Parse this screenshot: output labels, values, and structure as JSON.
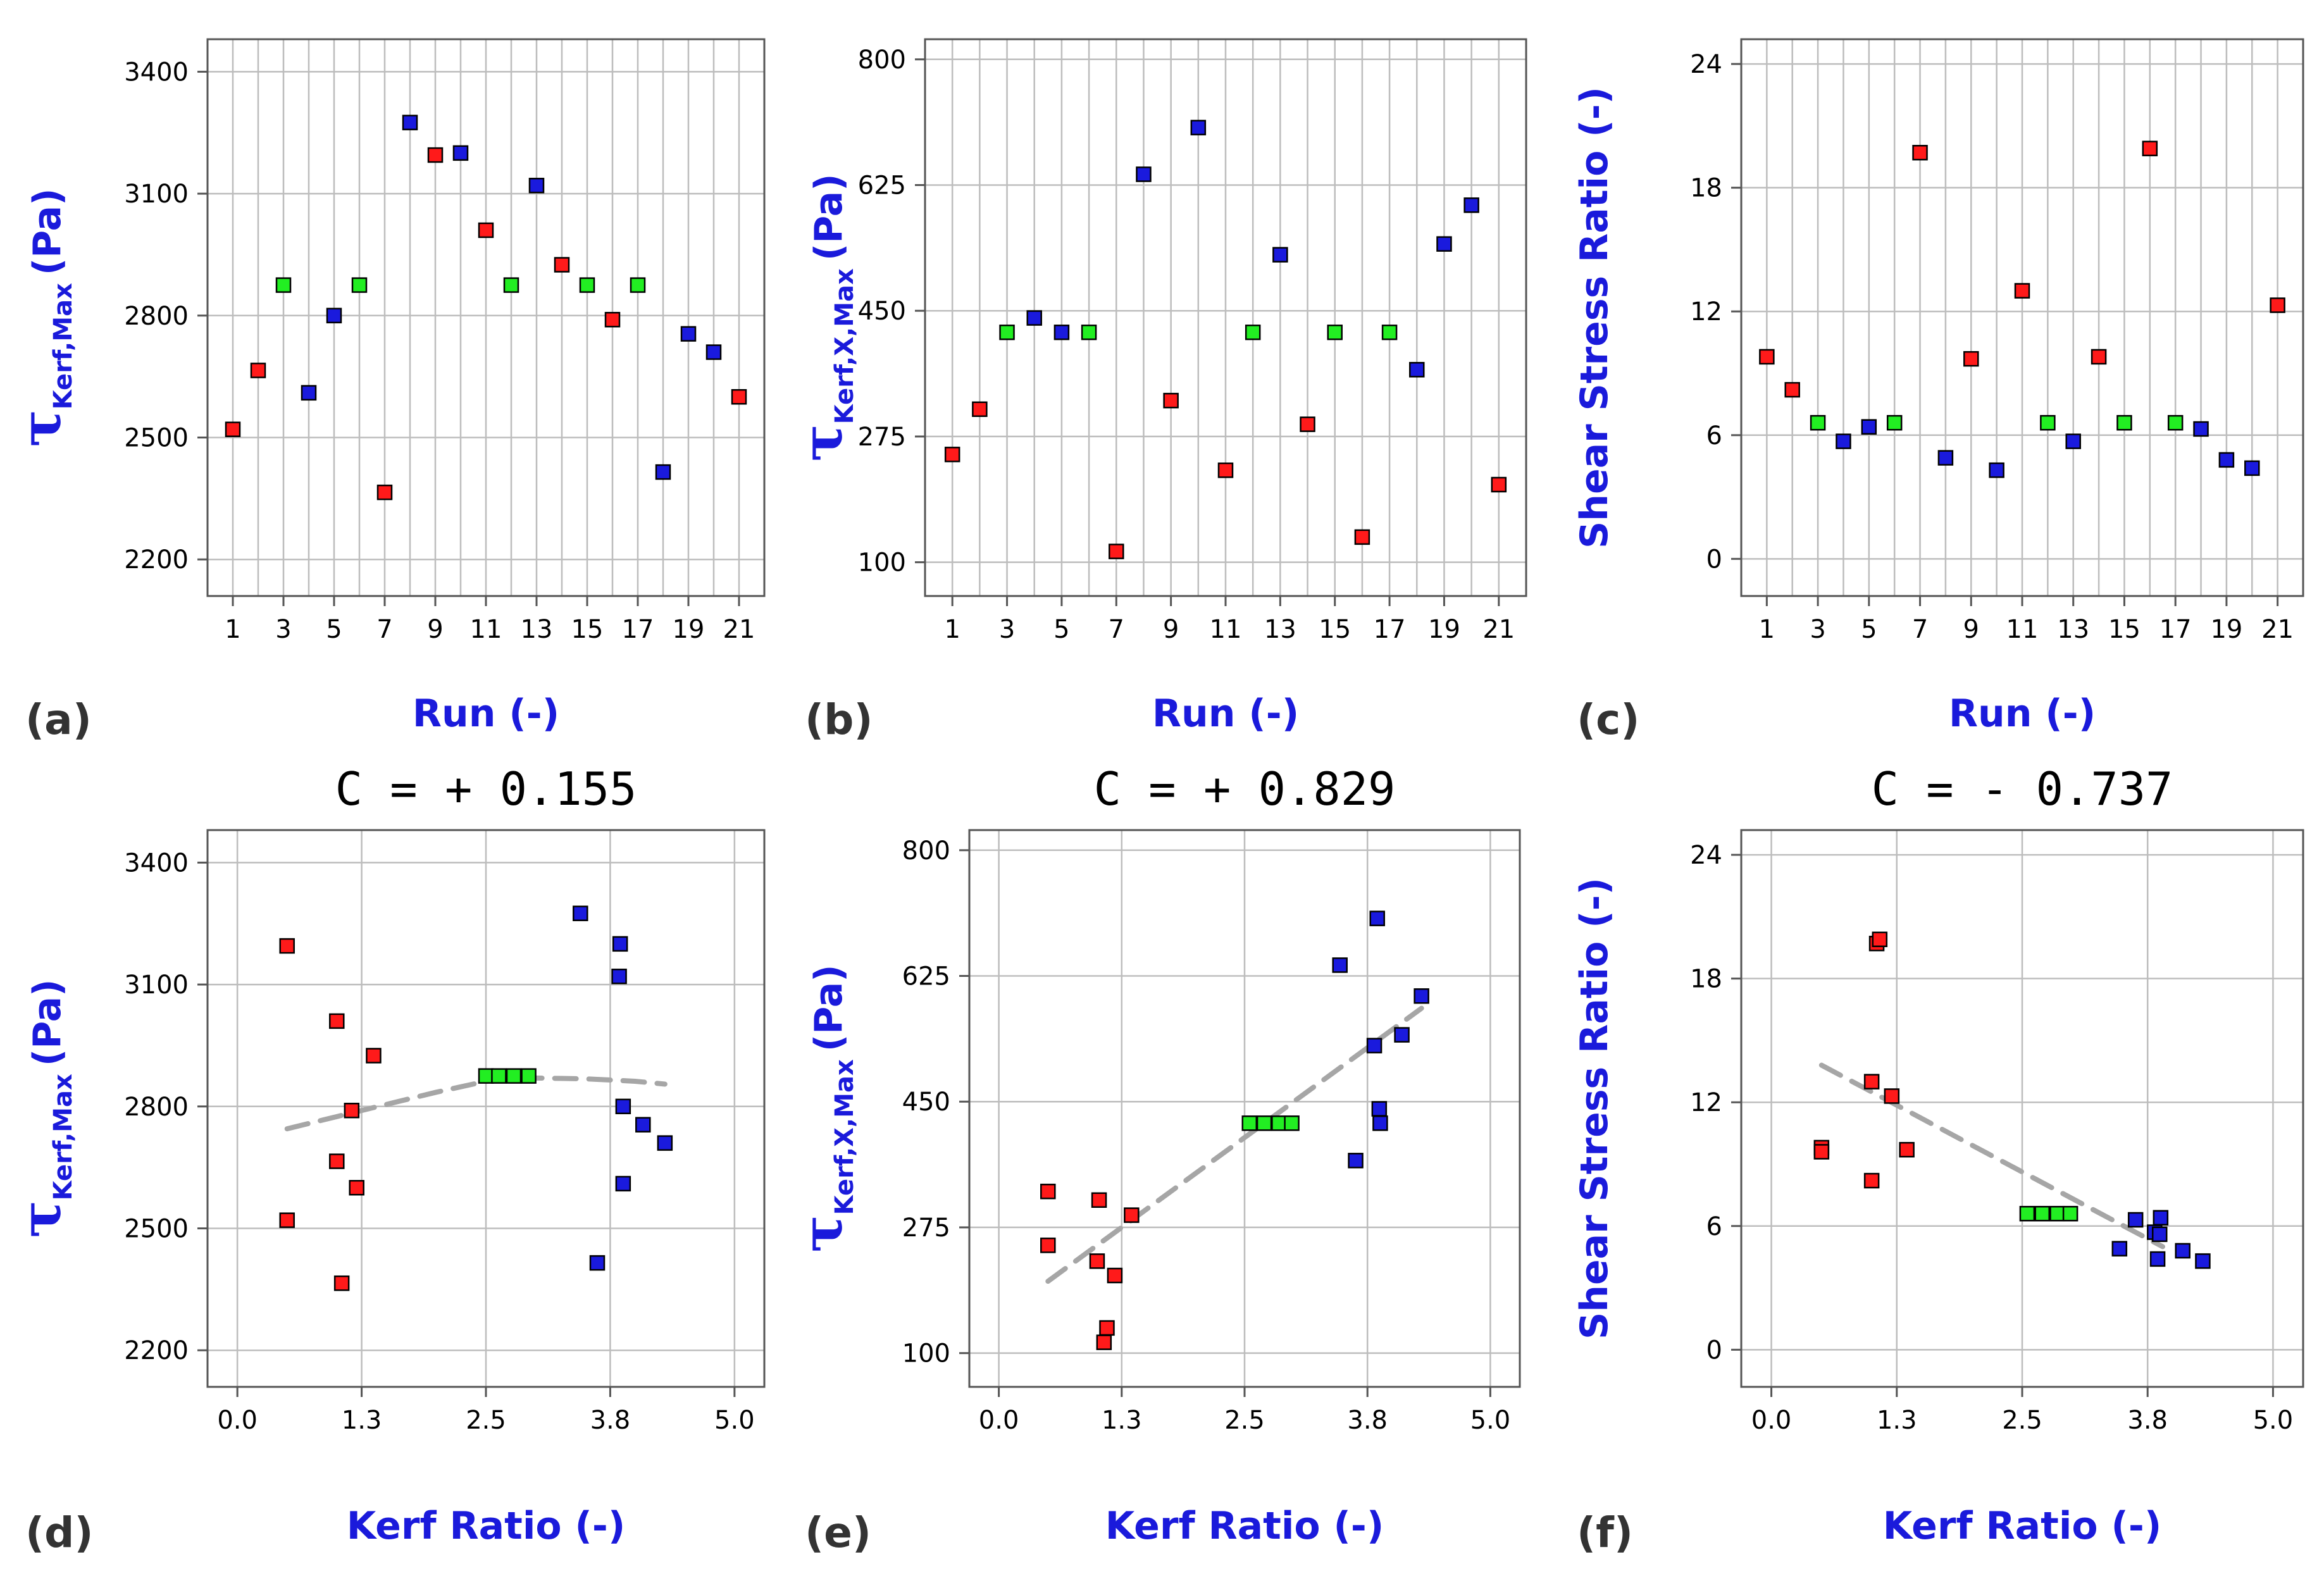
{
  "colors": {
    "red": "#ff1a1a",
    "green": "#22ee22",
    "blue": "#1a1add",
    "fit": "#a6a6a6",
    "grid": "#bdbdbd",
    "axis_label": "#1a1adb"
  },
  "chart_data": [
    {
      "type": "scatter",
      "panel": "(a)",
      "xlabel": "Run (-)",
      "ylabel": "τKerf,Max (Pa)",
      "ylabel_parts": {
        "symbol": "τ",
        "subscript": "Kerf,Max",
        "unit": "(Pa)"
      },
      "xlim": [
        0,
        22
      ],
      "ylim": [
        2110,
        3480
      ],
      "x_ticks": [
        1,
        3,
        5,
        7,
        9,
        11,
        13,
        15,
        17,
        19,
        21
      ],
      "x_tick_labels": [
        "1",
        "3",
        "5",
        "7",
        "9",
        "11",
        "13",
        "15",
        "17",
        "19",
        "21"
      ],
      "y_ticks": [
        2200,
        2500,
        2800,
        3100,
        3400
      ],
      "y_tick_labels": [
        "2200",
        "2500",
        "2800",
        "3100",
        "3400"
      ],
      "grid": true,
      "x_gridlines": [
        1,
        2,
        3,
        4,
        5,
        6,
        7,
        8,
        9,
        10,
        11,
        12,
        13,
        14,
        15,
        16,
        17,
        18,
        19,
        20,
        21
      ],
      "points": [
        {
          "x": 1,
          "y": 2520,
          "color": "red"
        },
        {
          "x": 2,
          "y": 2665,
          "color": "red"
        },
        {
          "x": 3,
          "y": 2875,
          "color": "green"
        },
        {
          "x": 4,
          "y": 2610,
          "color": "blue"
        },
        {
          "x": 5,
          "y": 2800,
          "color": "blue"
        },
        {
          "x": 6,
          "y": 2875,
          "color": "green"
        },
        {
          "x": 7,
          "y": 2365,
          "color": "red"
        },
        {
          "x": 8,
          "y": 3275,
          "color": "blue"
        },
        {
          "x": 9,
          "y": 3195,
          "color": "red"
        },
        {
          "x": 10,
          "y": 3200,
          "color": "blue"
        },
        {
          "x": 11,
          "y": 3010,
          "color": "red"
        },
        {
          "x": 12,
          "y": 2875,
          "color": "green"
        },
        {
          "x": 13,
          "y": 3120,
          "color": "blue"
        },
        {
          "x": 14,
          "y": 2925,
          "color": "red"
        },
        {
          "x": 15,
          "y": 2875,
          "color": "green"
        },
        {
          "x": 16,
          "y": 2790,
          "color": "red"
        },
        {
          "x": 17,
          "y": 2875,
          "color": "green"
        },
        {
          "x": 18,
          "y": 2415,
          "color": "blue"
        },
        {
          "x": 19,
          "y": 2755,
          "color": "blue"
        },
        {
          "x": 20,
          "y": 2710,
          "color": "blue"
        },
        {
          "x": 21,
          "y": 2600,
          "color": "red"
        }
      ]
    },
    {
      "type": "scatter",
      "panel": "(b)",
      "xlabel": "Run (-)",
      "ylabel": "τKerf,X,Max (Pa)",
      "ylabel_parts": {
        "symbol": "τ",
        "subscript": "Kerf,X,Max",
        "unit": "(Pa)"
      },
      "xlim": [
        0,
        22
      ],
      "ylim": [
        53,
        828
      ],
      "x_ticks": [
        1,
        3,
        5,
        7,
        9,
        11,
        13,
        15,
        17,
        19,
        21
      ],
      "x_tick_labels": [
        "1",
        "3",
        "5",
        "7",
        "9",
        "11",
        "13",
        "15",
        "17",
        "19",
        "21"
      ],
      "y_ticks": [
        100,
        275,
        450,
        625,
        800
      ],
      "y_tick_labels": [
        "100",
        "275",
        "450",
        "625",
        "800"
      ],
      "grid": true,
      "x_gridlines": [
        1,
        2,
        3,
        4,
        5,
        6,
        7,
        8,
        9,
        10,
        11,
        12,
        13,
        14,
        15,
        16,
        17,
        18,
        19,
        20,
        21
      ],
      "points": [
        {
          "x": 1,
          "y": 250,
          "color": "red"
        },
        {
          "x": 2,
          "y": 313,
          "color": "red"
        },
        {
          "x": 3,
          "y": 420,
          "color": "green"
        },
        {
          "x": 4,
          "y": 440,
          "color": "blue"
        },
        {
          "x": 5,
          "y": 420,
          "color": "blue"
        },
        {
          "x": 6,
          "y": 420,
          "color": "green"
        },
        {
          "x": 7,
          "y": 115,
          "color": "red"
        },
        {
          "x": 8,
          "y": 640,
          "color": "blue"
        },
        {
          "x": 9,
          "y": 325,
          "color": "red"
        },
        {
          "x": 10,
          "y": 705,
          "color": "blue"
        },
        {
          "x": 11,
          "y": 228,
          "color": "red"
        },
        {
          "x": 12,
          "y": 420,
          "color": "green"
        },
        {
          "x": 13,
          "y": 528,
          "color": "blue"
        },
        {
          "x": 14,
          "y": 292,
          "color": "red"
        },
        {
          "x": 15,
          "y": 420,
          "color": "green"
        },
        {
          "x": 16,
          "y": 135,
          "color": "red"
        },
        {
          "x": 17,
          "y": 420,
          "color": "green"
        },
        {
          "x": 18,
          "y": 368,
          "color": "blue"
        },
        {
          "x": 19,
          "y": 543,
          "color": "blue"
        },
        {
          "x": 20,
          "y": 597,
          "color": "blue"
        },
        {
          "x": 21,
          "y": 208,
          "color": "red"
        }
      ]
    },
    {
      "type": "scatter",
      "panel": "(c)",
      "xlabel": "Run (-)",
      "ylabel": "Shear Stress Ratio (-)",
      "xlim": [
        0,
        22
      ],
      "ylim": [
        -1.8,
        25.2
      ],
      "x_ticks": [
        1,
        3,
        5,
        7,
        9,
        11,
        13,
        15,
        17,
        19,
        21
      ],
      "x_tick_labels": [
        "1",
        "3",
        "5",
        "7",
        "9",
        "11",
        "13",
        "15",
        "17",
        "19",
        "21"
      ],
      "y_ticks": [
        0,
        6,
        12,
        18,
        24
      ],
      "y_tick_labels": [
        "0",
        "6",
        "12",
        "18",
        "24"
      ],
      "grid": true,
      "x_gridlines": [
        1,
        2,
        3,
        4,
        5,
        6,
        7,
        8,
        9,
        10,
        11,
        12,
        13,
        14,
        15,
        16,
        17,
        18,
        19,
        20,
        21
      ],
      "points": [
        {
          "x": 1,
          "y": 9.8,
          "color": "red"
        },
        {
          "x": 2,
          "y": 8.2,
          "color": "red"
        },
        {
          "x": 3,
          "y": 6.6,
          "color": "green"
        },
        {
          "x": 4,
          "y": 5.7,
          "color": "blue"
        },
        {
          "x": 5,
          "y": 6.4,
          "color": "blue"
        },
        {
          "x": 6,
          "y": 6.6,
          "color": "green"
        },
        {
          "x": 7,
          "y": 19.7,
          "color": "red"
        },
        {
          "x": 8,
          "y": 4.9,
          "color": "blue"
        },
        {
          "x": 9,
          "y": 9.7,
          "color": "red"
        },
        {
          "x": 10,
          "y": 4.3,
          "color": "blue"
        },
        {
          "x": 11,
          "y": 13.0,
          "color": "red"
        },
        {
          "x": 12,
          "y": 6.6,
          "color": "green"
        },
        {
          "x": 13,
          "y": 5.7,
          "color": "blue"
        },
        {
          "x": 14,
          "y": 9.8,
          "color": "red"
        },
        {
          "x": 15,
          "y": 6.6,
          "color": "green"
        },
        {
          "x": 16,
          "y": 19.9,
          "color": "red"
        },
        {
          "x": 17,
          "y": 6.6,
          "color": "green"
        },
        {
          "x": 18,
          "y": 6.3,
          "color": "blue"
        },
        {
          "x": 19,
          "y": 4.8,
          "color": "blue"
        },
        {
          "x": 20,
          "y": 4.4,
          "color": "blue"
        },
        {
          "x": 21,
          "y": 12.3,
          "color": "red"
        }
      ]
    },
    {
      "type": "scatter",
      "panel": "(d)",
      "annotation": "C = + 0.155",
      "xlabel": "Kerf Ratio (-)",
      "ylabel": "τKerf,Max (Pa)",
      "ylabel_parts": {
        "symbol": "τ",
        "subscript": "Kerf,Max",
        "unit": "(Pa)"
      },
      "xlim": [
        -0.3,
        5.3
      ],
      "ylim": [
        2110,
        3480
      ],
      "x_ticks": [
        0.0,
        1.25,
        2.5,
        3.75,
        5.0
      ],
      "x_tick_labels": [
        "0.0",
        "1.3",
        "2.5",
        "3.8",
        "5.0"
      ],
      "y_ticks": [
        2200,
        2500,
        2800,
        3100,
        3400
      ],
      "y_tick_labels": [
        "2200",
        "2500",
        "2800",
        "3100",
        "3400"
      ],
      "grid": true,
      "points": [
        {
          "x": 0.5,
          "y": 3195,
          "color": "red"
        },
        {
          "x": 0.5,
          "y": 2520,
          "color": "red"
        },
        {
          "x": 1.0,
          "y": 3010,
          "color": "red"
        },
        {
          "x": 1.0,
          "y": 2665,
          "color": "red"
        },
        {
          "x": 1.05,
          "y": 2365,
          "color": "red"
        },
        {
          "x": 1.15,
          "y": 2790,
          "color": "red"
        },
        {
          "x": 1.2,
          "y": 2600,
          "color": "red"
        },
        {
          "x": 1.37,
          "y": 2925,
          "color": "red"
        },
        {
          "x": 2.5,
          "y": 2875,
          "color": "green"
        },
        {
          "x": 2.63,
          "y": 2875,
          "color": "green"
        },
        {
          "x": 2.78,
          "y": 2875,
          "color": "green"
        },
        {
          "x": 2.93,
          "y": 2875,
          "color": "green"
        },
        {
          "x": 3.45,
          "y": 3275,
          "color": "blue"
        },
        {
          "x": 3.62,
          "y": 2415,
          "color": "blue"
        },
        {
          "x": 3.85,
          "y": 3200,
          "color": "blue"
        },
        {
          "x": 3.84,
          "y": 3120,
          "color": "blue"
        },
        {
          "x": 3.88,
          "y": 2800,
          "color": "blue"
        },
        {
          "x": 3.88,
          "y": 2610,
          "color": "blue"
        },
        {
          "x": 4.08,
          "y": 2755,
          "color": "blue"
        },
        {
          "x": 4.3,
          "y": 2710,
          "color": "blue"
        }
      ],
      "fit": {
        "style": "dashed",
        "x": [
          0.5,
          1.0,
          1.5,
          2.0,
          2.5,
          3.0,
          3.5,
          4.0,
          4.3
        ],
        "y": [
          2745,
          2775,
          2805,
          2835,
          2862,
          2870,
          2868,
          2862,
          2855
        ]
      }
    },
    {
      "type": "scatter",
      "panel": "(e)",
      "annotation": "C = + 0.829",
      "xlabel": "Kerf Ratio (-)",
      "ylabel": "τKerf,X,Max (Pa)",
      "ylabel_parts": {
        "symbol": "τ",
        "subscript": "Kerf,X,Max",
        "unit": "(Pa)"
      },
      "xlim": [
        -0.3,
        5.3
      ],
      "ylim": [
        53,
        828
      ],
      "x_ticks": [
        0.0,
        1.25,
        2.5,
        3.75,
        5.0
      ],
      "x_tick_labels": [
        "0.0",
        "1.3",
        "2.5",
        "3.8",
        "5.0"
      ],
      "y_ticks": [
        100,
        275,
        450,
        625,
        800
      ],
      "y_tick_labels": [
        "100",
        "275",
        "450",
        "625",
        "800"
      ],
      "grid": true,
      "points": [
        {
          "x": 0.5,
          "y": 325,
          "color": "red"
        },
        {
          "x": 0.5,
          "y": 250,
          "color": "red"
        },
        {
          "x": 1.02,
          "y": 313,
          "color": "red"
        },
        {
          "x": 1.0,
          "y": 228,
          "color": "red"
        },
        {
          "x": 1.07,
          "y": 115,
          "color": "red"
        },
        {
          "x": 1.1,
          "y": 135,
          "color": "red"
        },
        {
          "x": 1.18,
          "y": 208,
          "color": "red"
        },
        {
          "x": 1.35,
          "y": 292,
          "color": "red"
        },
        {
          "x": 2.55,
          "y": 420,
          "color": "green"
        },
        {
          "x": 2.7,
          "y": 420,
          "color": "green"
        },
        {
          "x": 2.85,
          "y": 420,
          "color": "green"
        },
        {
          "x": 2.98,
          "y": 420,
          "color": "green"
        },
        {
          "x": 3.47,
          "y": 640,
          "color": "blue"
        },
        {
          "x": 3.85,
          "y": 705,
          "color": "blue"
        },
        {
          "x": 3.63,
          "y": 368,
          "color": "blue"
        },
        {
          "x": 3.82,
          "y": 528,
          "color": "blue"
        },
        {
          "x": 3.87,
          "y": 440,
          "color": "blue"
        },
        {
          "x": 3.88,
          "y": 420,
          "color": "blue"
        },
        {
          "x": 4.1,
          "y": 543,
          "color": "blue"
        },
        {
          "x": 4.3,
          "y": 597,
          "color": "blue"
        }
      ],
      "fit": {
        "style": "dashed",
        "x": [
          0.5,
          4.3
        ],
        "y": [
          200,
          580
        ]
      }
    },
    {
      "type": "scatter",
      "panel": "(f)",
      "annotation": "C = - 0.737",
      "xlabel": "Kerf Ratio (-)",
      "ylabel": "Shear Stress Ratio (-)",
      "xlim": [
        -0.3,
        5.3
      ],
      "ylim": [
        -1.8,
        25.2
      ],
      "x_ticks": [
        0.0,
        1.25,
        2.5,
        3.75,
        5.0
      ],
      "x_tick_labels": [
        "0.0",
        "1.3",
        "2.5",
        "3.8",
        "5.0"
      ],
      "y_ticks": [
        0,
        6,
        12,
        18,
        24
      ],
      "y_tick_labels": [
        "0",
        "6",
        "12",
        "18",
        "24"
      ],
      "grid": true,
      "points": [
        {
          "x": 0.5,
          "y": 9.8,
          "color": "red"
        },
        {
          "x": 0.5,
          "y": 9.6,
          "color": "red"
        },
        {
          "x": 1.0,
          "y": 13.0,
          "color": "red"
        },
        {
          "x": 1.0,
          "y": 8.2,
          "color": "red"
        },
        {
          "x": 1.05,
          "y": 19.7,
          "color": "red"
        },
        {
          "x": 1.08,
          "y": 19.9,
          "color": "red"
        },
        {
          "x": 1.2,
          "y": 12.3,
          "color": "red"
        },
        {
          "x": 1.35,
          "y": 9.7,
          "color": "red"
        },
        {
          "x": 2.55,
          "y": 6.6,
          "color": "green"
        },
        {
          "x": 2.7,
          "y": 6.6,
          "color": "green"
        },
        {
          "x": 2.85,
          "y": 6.6,
          "color": "green"
        },
        {
          "x": 2.98,
          "y": 6.6,
          "color": "green"
        },
        {
          "x": 3.47,
          "y": 4.9,
          "color": "blue"
        },
        {
          "x": 3.63,
          "y": 6.3,
          "color": "blue"
        },
        {
          "x": 3.82,
          "y": 5.7,
          "color": "blue"
        },
        {
          "x": 3.85,
          "y": 4.4,
          "color": "blue"
        },
        {
          "x": 3.87,
          "y": 5.6,
          "color": "blue"
        },
        {
          "x": 3.88,
          "y": 6.4,
          "color": "blue"
        },
        {
          "x": 4.1,
          "y": 4.8,
          "color": "blue"
        },
        {
          "x": 4.3,
          "y": 4.3,
          "color": "blue"
        }
      ],
      "fit": {
        "style": "dashed",
        "x": [
          0.5,
          3.9
        ],
        "y": [
          13.8,
          5.0
        ]
      }
    }
  ]
}
